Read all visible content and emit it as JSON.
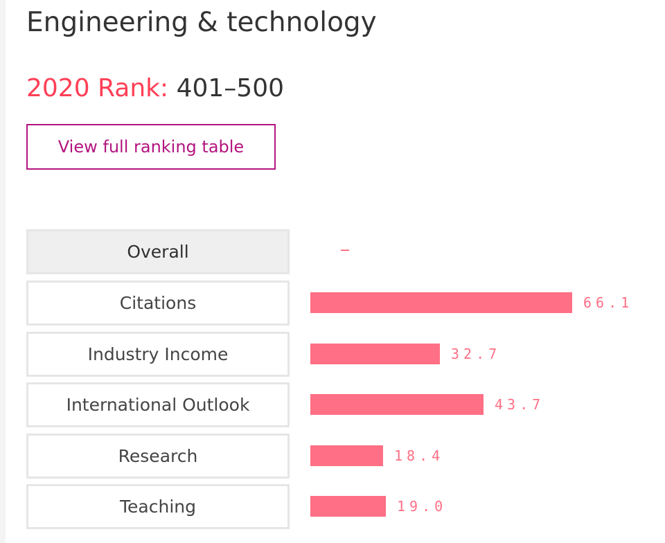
{
  "subject": {
    "title": "Engineering & technology"
  },
  "rank": {
    "label": "2020 Rank:",
    "value": "401–500"
  },
  "actions": {
    "view_full_table": "View full ranking table"
  },
  "colors": {
    "accent_red": "#ff3f56",
    "bar_pink": "#ff6f85",
    "button_magenta": "#b3147f"
  },
  "chart_data": {
    "type": "bar",
    "orientation": "horizontal",
    "overall": {
      "label": "Overall",
      "value_text": "–"
    },
    "categories": [
      "Citations",
      "Industry Income",
      "International Outlook",
      "Research",
      "Teaching"
    ],
    "values": [
      66.1,
      32.7,
      43.7,
      18.4,
      19.0
    ],
    "value_labels": [
      "66.1",
      "32.7",
      "43.7",
      "18.4",
      "19.0"
    ],
    "xlim": [
      0,
      100
    ],
    "grid": false,
    "legend": "none"
  }
}
